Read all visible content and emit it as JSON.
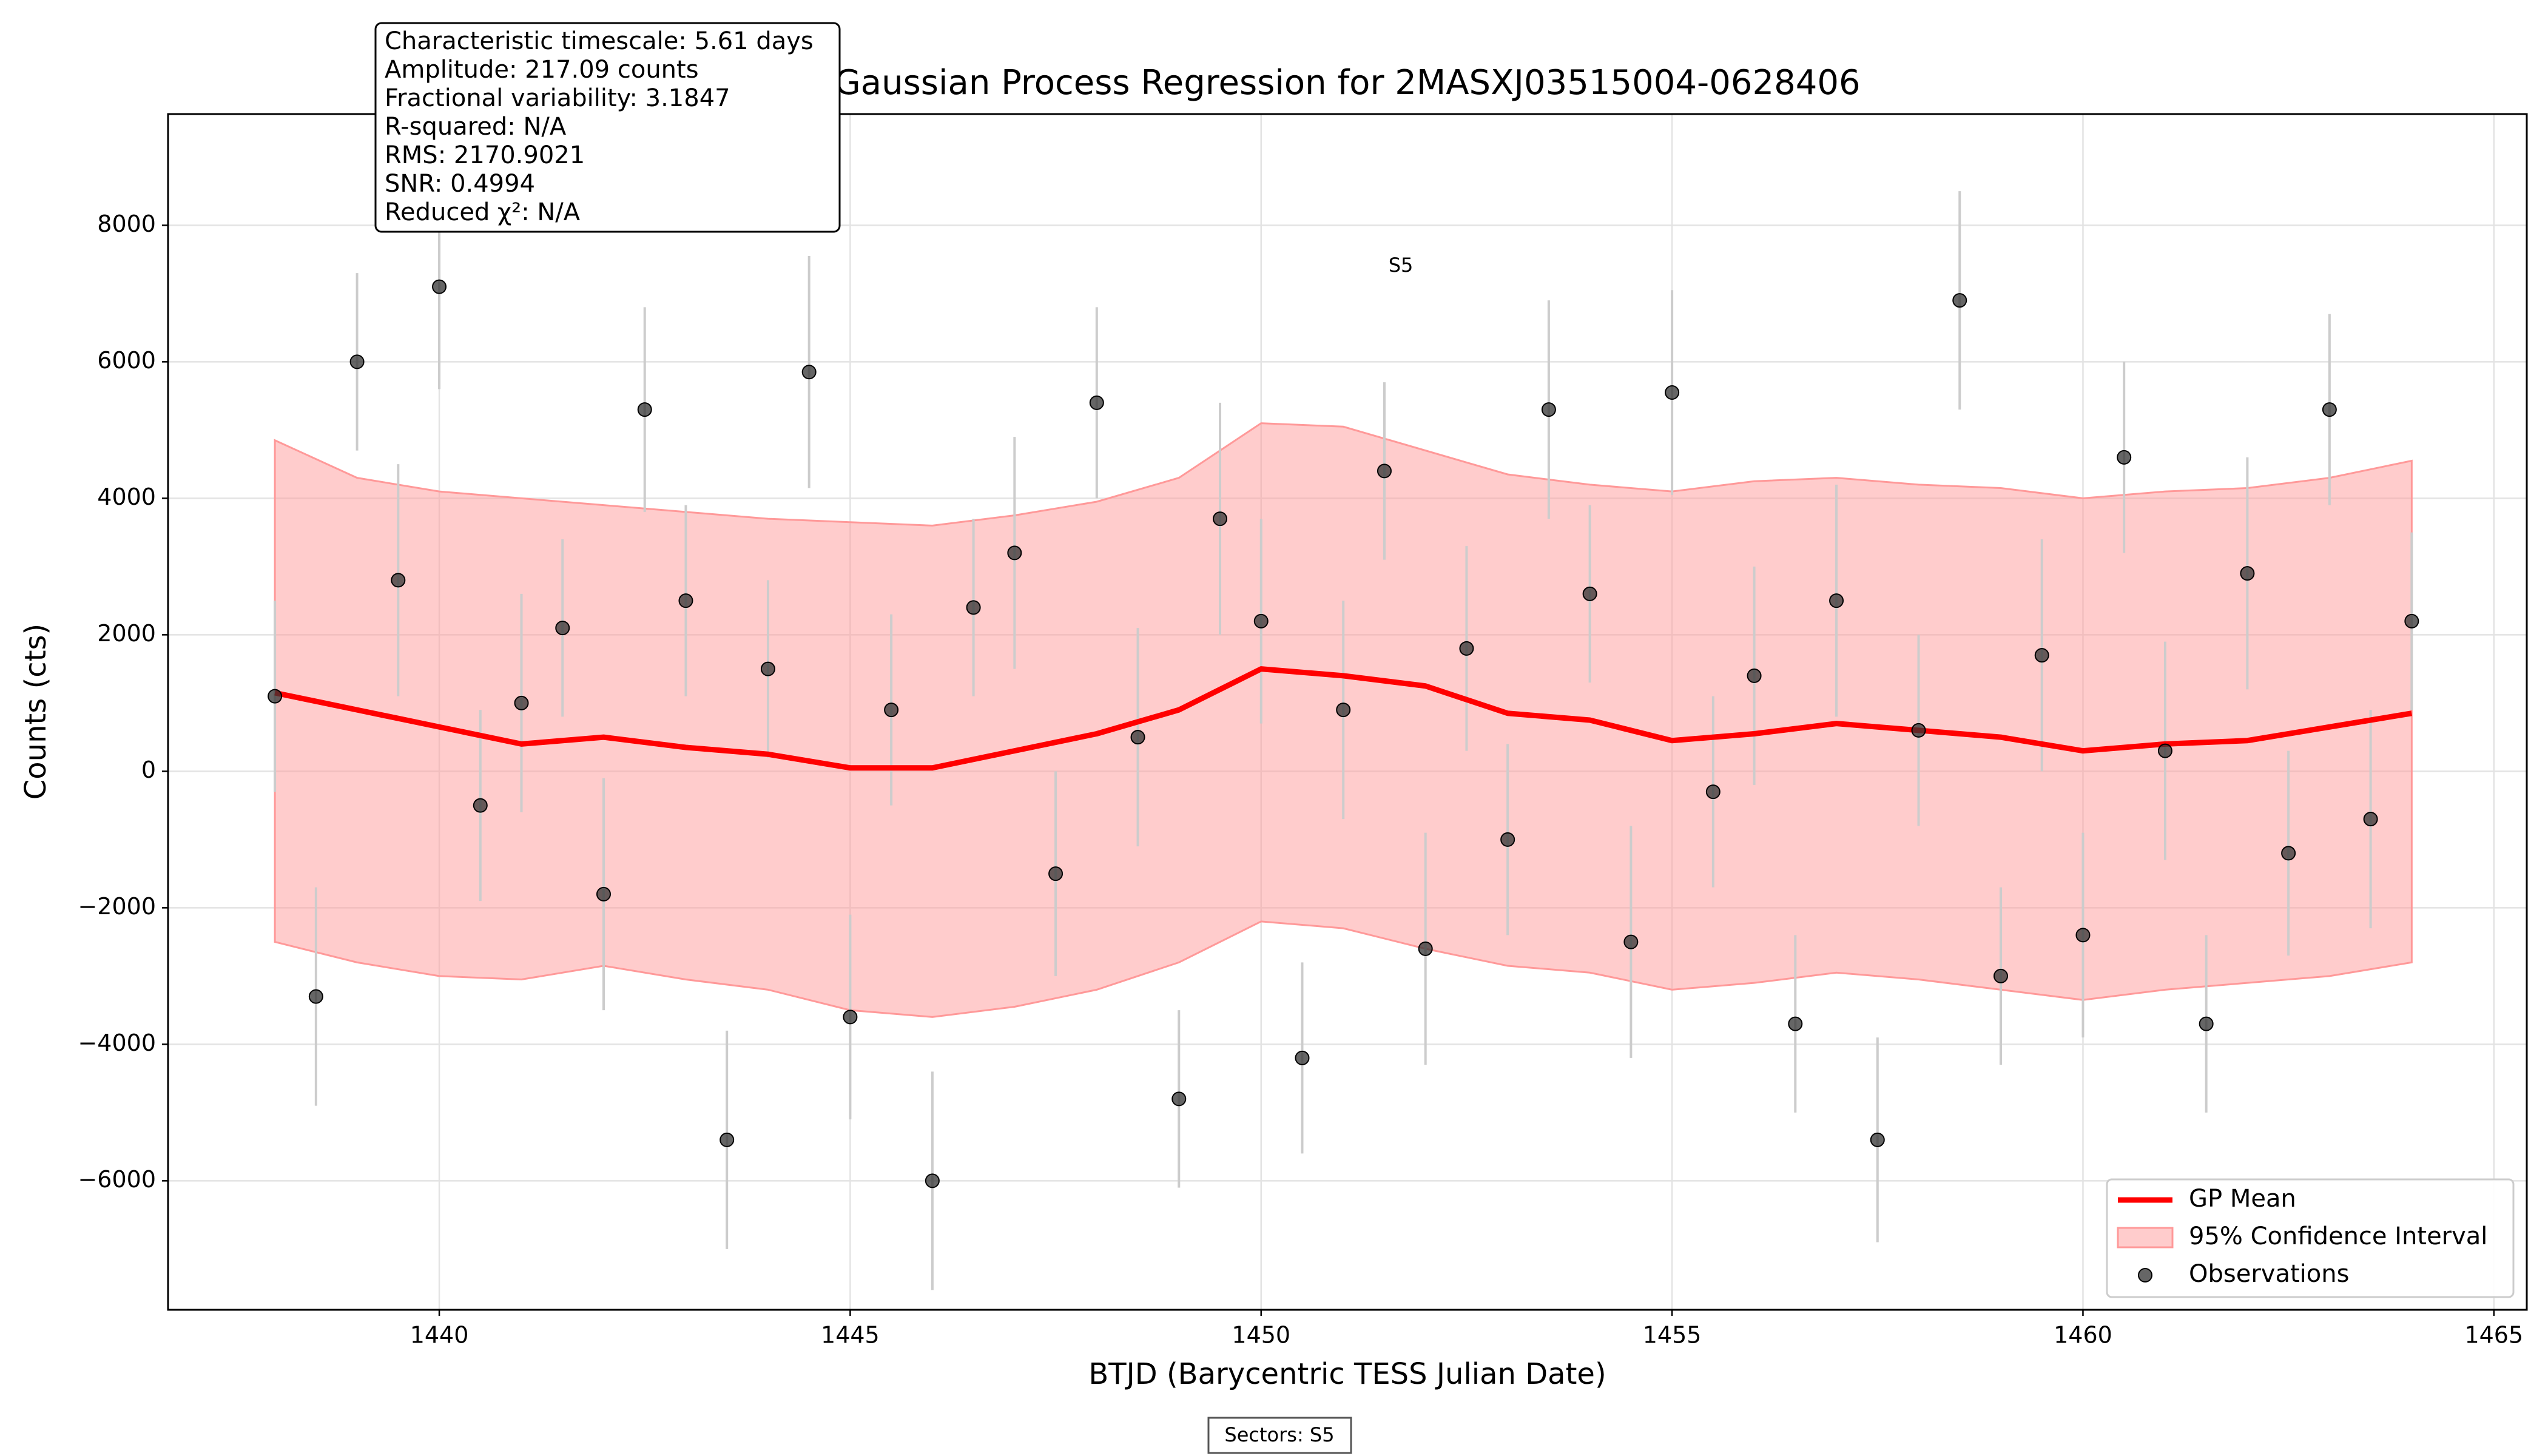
{
  "chart_data": {
    "type": "gp",
    "title": "Gaussian Process Regression for 2MASXJ03515004-0628406",
    "x_label": "BTJD (Barycentric TESS Julian Date)",
    "y_label": "Counts (cts)",
    "xlim": [
      1436.7,
      1465.4
    ],
    "ylim": [
      -7890,
      9630
    ],
    "xticks": [
      1440,
      1445,
      1450,
      1455,
      1460,
      1465
    ],
    "yticks": [
      {
        "value": -6000,
        "label": "−6000"
      },
      {
        "value": -4000,
        "label": "−4000"
      },
      {
        "value": -2000,
        "label": "−2000"
      },
      0,
      2000,
      4000,
      6000,
      8000
    ],
    "grid": true,
    "legend": "lower right",
    "stats": [
      "Characteristic timescale: 5.61 days",
      "Amplitude: 217.09 counts",
      "Fractional variability: 3.1847",
      "R-squared: N/A",
      "RMS: 2170.9021",
      "SNR: 0.4994",
      "Reduced χ²: N/A"
    ],
    "annotation": {
      "text": "S5",
      "x": 1451.7,
      "y": 7400
    },
    "footer": "Sectors: S5",
    "series": [
      {
        "name": "GP Mean",
        "color": "#ff0000",
        "x": [
          1438,
          1439,
          1440,
          1441,
          1442,
          1443,
          1444,
          1445,
          1446,
          1447,
          1448,
          1449,
          1450,
          1451,
          1452,
          1453,
          1454,
          1455,
          1456,
          1457,
          1458,
          1459,
          1460,
          1461,
          1462,
          1463,
          1464
        ],
        "values": [
          1150,
          900,
          650,
          400,
          500,
          350,
          250,
          50,
          50,
          300,
          550,
          900,
          1500,
          1400,
          1250,
          850,
          750,
          450,
          550,
          700,
          600,
          500,
          300,
          400,
          450,
          650,
          850
        ]
      },
      {
        "name": "95% Confidence Interval",
        "color": "#ff9999",
        "x": [
          1438,
          1439,
          1440,
          1441,
          1442,
          1443,
          1444,
          1445,
          1446,
          1447,
          1448,
          1449,
          1450,
          1451,
          1452,
          1453,
          1454,
          1455,
          1456,
          1457,
          1458,
          1459,
          1460,
          1461,
          1462,
          1463,
          1464
        ],
        "upper": [
          4850,
          4300,
          4100,
          4000,
          3900,
          3800,
          3700,
          3650,
          3600,
          3750,
          3950,
          4300,
          5100,
          5050,
          4700,
          4350,
          4200,
          4100,
          4250,
          4300,
          4200,
          4150,
          4000,
          4100,
          4150,
          4300,
          4550
        ],
        "lower": [
          -2500,
          -2800,
          -3000,
          -3050,
          -2850,
          -3050,
          -3200,
          -3500,
          -3600,
          -3450,
          -3200,
          -2800,
          -2200,
          -2300,
          -2600,
          -2850,
          -2950,
          -3200,
          -3100,
          -2950,
          -3050,
          -3200,
          -3350,
          -3200,
          -3100,
          -3000,
          -2800
        ]
      },
      {
        "name": "Observations",
        "color": "#333333",
        "x": [
          1438,
          1438.5,
          1439,
          1439.5,
          1440,
          1440.5,
          1441,
          1441.5,
          1442,
          1442.5,
          1443,
          1443.5,
          1444,
          1444.5,
          1445,
          1445.5,
          1446,
          1446.5,
          1447,
          1447.5,
          1448,
          1448.5,
          1449,
          1449.5,
          1450,
          1450.5,
          1451,
          1451.5,
          1452,
          1452.5,
          1453,
          1453.5,
          1454,
          1454.5,
          1455,
          1455.5,
          1456,
          1456.5,
          1457,
          1457.5,
          1458,
          1458.5,
          1459,
          1459.5,
          1460,
          1460.5,
          1461,
          1461.5,
          1462,
          1462.5,
          1463,
          1463.5,
          1464
        ],
        "values": [
          1100,
          -3300,
          6000,
          2800,
          7100,
          -500,
          1000,
          2100,
          -1800,
          5300,
          2500,
          -5400,
          1500,
          5850,
          -3600,
          900,
          -6000,
          2400,
          3200,
          -1500,
          5400,
          500,
          -4800,
          3700,
          2200,
          -4200,
          900,
          4400,
          -2600,
          1800,
          -1000,
          5300,
          2600,
          -2500,
          5550,
          -300,
          1400,
          -3700,
          2500,
          -5400,
          600,
          6900,
          -3000,
          1700,
          -2400,
          4600,
          300,
          -3700,
          2900,
          -1200,
          5300,
          -700,
          2200
        ],
        "errors": [
          1400,
          1600,
          1300,
          1700,
          1500,
          1400,
          1600,
          1300,
          1700,
          1500,
          1400,
          1600,
          1300,
          1700,
          1500,
          1400,
          1600,
          1300,
          1700,
          1500,
          1400,
          1600,
          1300,
          1700,
          1500,
          1400,
          1600,
          1300,
          1700,
          1500,
          1400,
          1600,
          1300,
          1700,
          1500,
          1400,
          1600,
          1300,
          1700,
          1500,
          1400,
          1600,
          1300,
          1700,
          1500,
          1400,
          1600,
          1300,
          1700,
          1500,
          1400,
          1600,
          1300
        ]
      }
    ]
  }
}
